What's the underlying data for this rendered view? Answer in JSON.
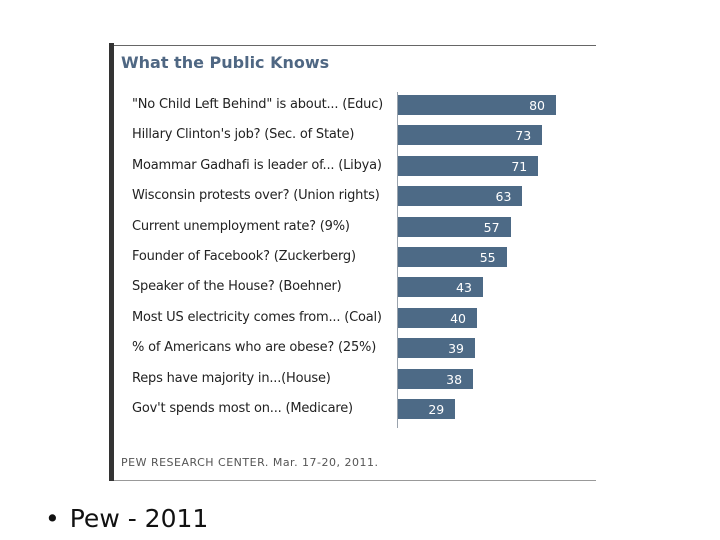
{
  "chart_data": {
    "type": "bar",
    "orientation": "horizontal",
    "title": "What the Public Knows",
    "categories": [
      "\"No Child Left Behind\" is about... (Educ)",
      "Hillary Clinton's job? (Sec. of State)",
      "Moammar Gadhafi is leader of... (Libya)",
      "Wisconsin protests over? (Union rights)",
      "Current unemployment rate? (9%)",
      "Founder of Facebook? (Zuckerberg)",
      "Speaker of the House? (Boehner)",
      "Most US electricity comes from... (Coal)",
      "% of Americans who are obese? (25%)",
      "Reps have majority in...(House)",
      "Gov't spends most on... (Medicare)"
    ],
    "values": [
      80,
      73,
      71,
      63,
      57,
      55,
      43,
      40,
      39,
      38,
      29
    ],
    "xlim": [
      0,
      100
    ],
    "grid": false,
    "legend": "none",
    "data_labels": true,
    "bar_color": "#4d6a86"
  },
  "source_note": "PEW RESEARCH CENTER. Mar. 17-20, 2011.",
  "bullet_text": "Pew - 2011",
  "bullet_glyph": "•",
  "colors": {
    "title": "#4f6783",
    "frame": "#333333",
    "bar": "#4d6a86"
  }
}
